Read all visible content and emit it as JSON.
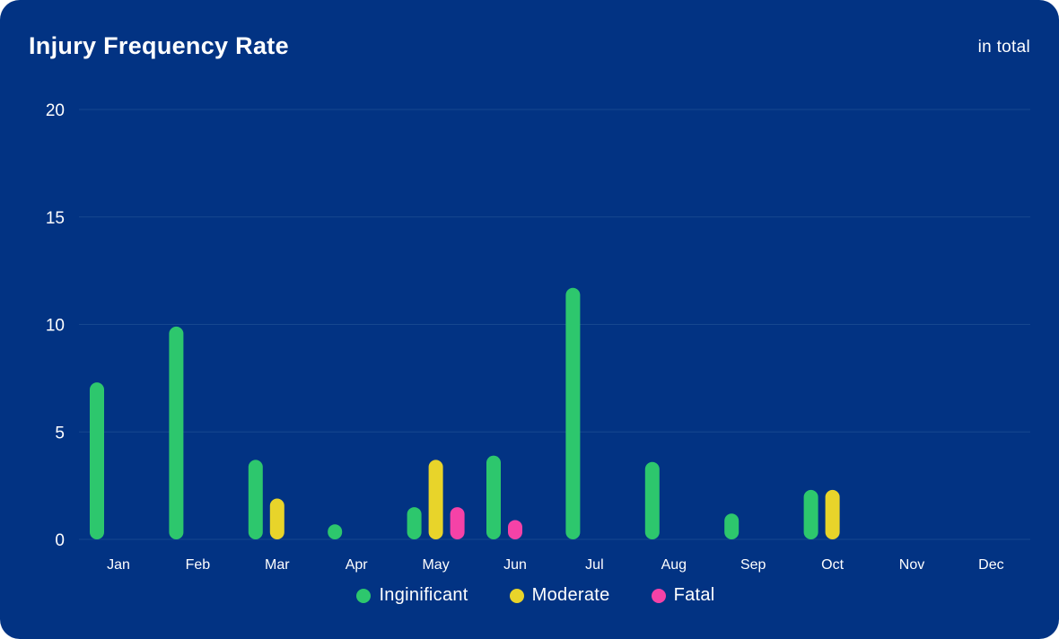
{
  "header": {
    "title": "Injury Frequency Rate",
    "scope": "in total"
  },
  "colors": {
    "background": "#023383",
    "gridline": "#16478f",
    "text": "#ffffff"
  },
  "chart_data": {
    "type": "bar",
    "title": "Injury Frequency Rate",
    "subtitle": "in total",
    "xlabel": "",
    "ylabel": "",
    "categories": [
      "Jan",
      "Feb",
      "Mar",
      "Apr",
      "May",
      "Jun",
      "Jul",
      "Aug",
      "Sep",
      "Oct",
      "Nov",
      "Dec"
    ],
    "ylim": [
      0,
      20
    ],
    "yticks": [
      0,
      5,
      10,
      15,
      20
    ],
    "grid": true,
    "legend_position": "bottom-center",
    "series": [
      {
        "name": "Inginificant",
        "color": "#2dc76d",
        "values": [
          7.3,
          9.9,
          3.7,
          0.7,
          1.5,
          3.9,
          11.7,
          3.6,
          1.2,
          2.3,
          null,
          null
        ]
      },
      {
        "name": "Moderate",
        "color": "#e8d42a",
        "values": [
          null,
          null,
          1.9,
          null,
          3.7,
          null,
          null,
          null,
          null,
          2.3,
          null,
          null
        ]
      },
      {
        "name": "Fatal",
        "color": "#f542a7",
        "values": [
          null,
          null,
          null,
          null,
          1.5,
          0.9,
          null,
          null,
          null,
          null,
          null,
          null
        ]
      }
    ]
  }
}
